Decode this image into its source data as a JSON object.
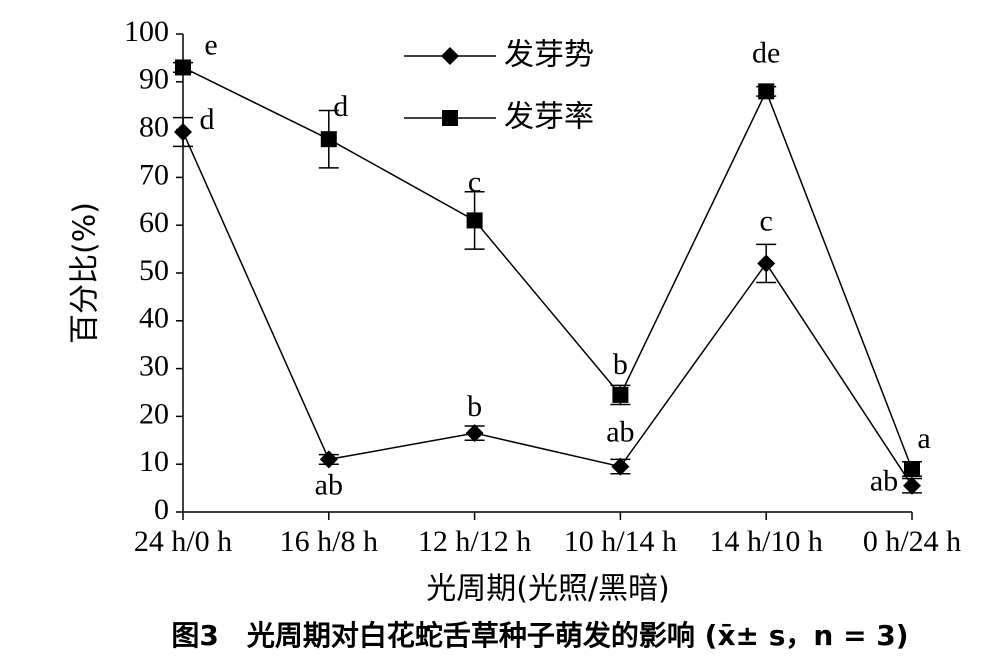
{
  "chart_data": {
    "type": "line",
    "caption": "图3　光周期对白花蛇舌草种子萌发的影响 (x̄± s，n = 3)",
    "x_label": "光周期(光照/黑暗)",
    "y_label": "百分比(%)",
    "categories": [
      "24 h/0 h",
      "16 h/8 h",
      "12 h/12 h",
      "10 h/14 h",
      "14 h/10 h",
      "0 h/24 h"
    ],
    "series": [
      {
        "name": "发芽势",
        "marker": "diamond",
        "color": "#000000",
        "values": [
          79.5,
          11,
          16.5,
          9.5,
          52,
          5.5
        ],
        "errors": [
          3,
          1,
          1.5,
          1.5,
          4,
          1.5
        ],
        "letters": [
          "d",
          "ab",
          "b",
          "ab",
          "c",
          "ab"
        ]
      },
      {
        "name": "发芽率",
        "marker": "square",
        "color": "#000000",
        "values": [
          93,
          78,
          61,
          24.5,
          88,
          9
        ],
        "errors": [
          1,
          6,
          6,
          2,
          1,
          1.5
        ],
        "letters": [
          "e",
          "d",
          "c",
          "b",
          "de",
          "a"
        ]
      }
    ],
    "ylim": [
      0,
      100
    ],
    "yticks": [
      0,
      10,
      20,
      30,
      40,
      50,
      60,
      70,
      80,
      90,
      100
    ],
    "grid": false
  }
}
